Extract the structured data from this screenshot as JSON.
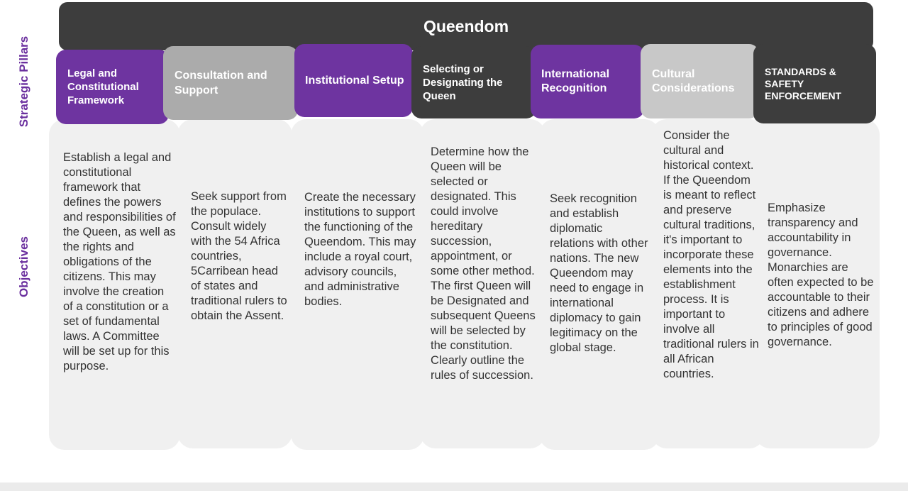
{
  "title": "Queendom",
  "side_labels": {
    "pillars": "Strategic Pillars",
    "objectives": "Objectives"
  },
  "pillars": [
    {
      "label": "Legal and Constitutional Framework",
      "color": "#6e34a0",
      "objective": "Establish a legal and constitutional framework that defines the powers and responsibilities of the Queen, as well as the rights and obligations of the citizens. This may involve the creation of a constitution or a set of fundamental laws. A Committee will be set up for this purpose."
    },
    {
      "label": "Consultation and Support",
      "color": "#ababab",
      "objective": "Seek support from the populace. Consult widely with the 54 Africa countries, 5Carribean head of states and traditional rulers to obtain the Assent."
    },
    {
      "label": "Institutional Setup",
      "color": "#6e34a0",
      "objective": "Create the necessary institutions to support the functioning of the Queendom. This may include a royal court, advisory councils, and administrative bodies."
    },
    {
      "label": "Selecting or Designating the Queen",
      "color": "#3d3d3d",
      "objective": "Determine how the Queen will be selected or designated. This could involve hereditary succession, appointment, or some other method. The first Queen will be Designated  and subsequent Queens will be selected by the constitution. Clearly outline the rules of succession."
    },
    {
      "label": "International Recognition",
      "color": "#6e34a0",
      "objective": "Seek recognition and establish diplomatic relations with other nations. The new Queendom may need to engage in international diplomacy to gain legitimacy on the global stage."
    },
    {
      "label": "Cultural Considerations",
      "color": "#c8c8c8",
      "objective": "Consider the cultural and historical context. If the Queendom is meant to reflect and preserve cultural traditions, it's important to incorporate these elements into the establishment process. It is important to involve all traditional rulers in all African countries."
    },
    {
      "label": "STANDARDS & SAFETY ENFORCEMENT",
      "color": "#3d3d3d",
      "objective": "Emphasize transparency and accountability in governance. Monarchies are often expected to be accountable to their citizens and adhere to principles of good governance."
    }
  ]
}
